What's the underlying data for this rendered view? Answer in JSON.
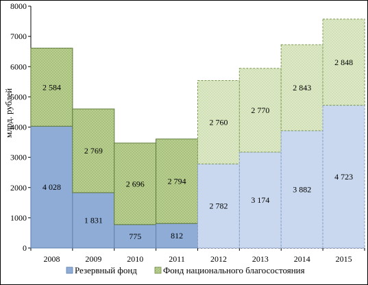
{
  "chart_data": {
    "type": "bar",
    "stacked": true,
    "categories": [
      "2008",
      "2009",
      "2010",
      "2011",
      "2012",
      "2013",
      "2014",
      "2015"
    ],
    "series": [
      {
        "name": "Резервный фонд",
        "values": [
          4028,
          1831,
          775,
          812,
          2782,
          3174,
          3882,
          4723
        ],
        "labels": [
          "4 028",
          "1 831",
          "775",
          "812",
          "2 782",
          "3 174",
          "3 882",
          "4 723"
        ],
        "color": "#8EACD6",
        "color_forecast": "#C9D8EE"
      },
      {
        "name": "Фонд национального благосостояния",
        "values": [
          2584,
          2769,
          2696,
          2794,
          2760,
          2770,
          2843,
          2848
        ],
        "labels": [
          "2 584",
          "2 769",
          "2 696",
          "2 794",
          "2 760",
          "2 770",
          "2 843",
          "2 848"
        ],
        "color": "#B9CF8F",
        "color_forecast": "#DCE8C6"
      }
    ],
    "forecast_from_index": 4,
    "ylabel": "млрд. рублей",
    "ylim": [
      0,
      8000
    ],
    "yticks": [
      0,
      1000,
      2000,
      3000,
      4000,
      5000,
      6000,
      7000,
      8000
    ],
    "grid": false,
    "legend_position": "bottom"
  }
}
